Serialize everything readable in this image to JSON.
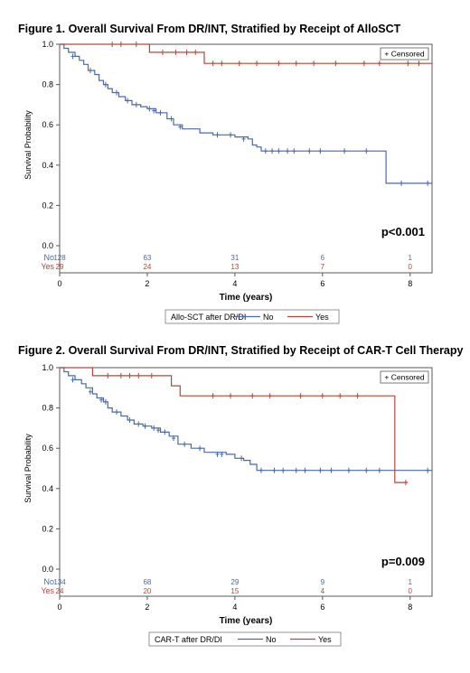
{
  "chart_data": [
    {
      "type": "line",
      "title": "Figure 1. Overall Survival From DR/INT, Stratified by Receipt of AlloSCT",
      "xlabel": "Time (years)",
      "ylabel": "Survival Probability",
      "xlim": [
        0,
        8.5
      ],
      "ylim": [
        0,
        1.0
      ],
      "x_ticks": [
        0,
        2,
        4,
        6,
        8
      ],
      "y_ticks": [
        0.0,
        0.2,
        0.4,
        0.6,
        0.8,
        1.0
      ],
      "inset_legend": "+ Censored",
      "p_value": "p<0.001",
      "legend_title": "Allo-SCT after DR/DI",
      "series": [
        {
          "name": "No",
          "color": "#4a6aa5",
          "steps": [
            [
              0,
              1.0
            ],
            [
              0.1,
              0.98
            ],
            [
              0.2,
              0.96
            ],
            [
              0.35,
              0.94
            ],
            [
              0.45,
              0.92
            ],
            [
              0.55,
              0.9
            ],
            [
              0.65,
              0.87
            ],
            [
              0.8,
              0.85
            ],
            [
              0.9,
              0.82
            ],
            [
              1.0,
              0.8
            ],
            [
              1.1,
              0.78
            ],
            [
              1.2,
              0.76
            ],
            [
              1.35,
              0.74
            ],
            [
              1.5,
              0.72
            ],
            [
              1.65,
              0.7
            ],
            [
              1.85,
              0.69
            ],
            [
              2.0,
              0.68
            ],
            [
              2.2,
              0.66
            ],
            [
              2.45,
              0.63
            ],
            [
              2.6,
              0.6
            ],
            [
              2.8,
              0.58
            ],
            [
              3.2,
              0.56
            ],
            [
              3.5,
              0.55
            ],
            [
              4.0,
              0.54
            ],
            [
              4.3,
              0.53
            ],
            [
              4.4,
              0.5
            ],
            [
              4.5,
              0.49
            ],
            [
              4.6,
              0.47
            ],
            [
              7.4,
              0.47
            ],
            [
              7.45,
              0.31
            ],
            [
              8.5,
              0.31
            ]
          ],
          "censored": [
            [
              0.3,
              0.94
            ],
            [
              0.7,
              0.87
            ],
            [
              1.05,
              0.8
            ],
            [
              1.3,
              0.76
            ],
            [
              1.55,
              0.72
            ],
            [
              1.75,
              0.7
            ],
            [
              2.05,
              0.68
            ],
            [
              2.15,
              0.67
            ],
            [
              2.3,
              0.66
            ],
            [
              2.55,
              0.63
            ],
            [
              2.75,
              0.59
            ],
            [
              3.6,
              0.55
            ],
            [
              3.9,
              0.55
            ],
            [
              4.2,
              0.53
            ],
            [
              4.7,
              0.47
            ],
            [
              4.85,
              0.47
            ],
            [
              5.0,
              0.47
            ],
            [
              5.2,
              0.47
            ],
            [
              5.35,
              0.47
            ],
            [
              5.7,
              0.47
            ],
            [
              5.95,
              0.47
            ],
            [
              6.5,
              0.47
            ],
            [
              7.0,
              0.47
            ],
            [
              7.8,
              0.31
            ],
            [
              8.4,
              0.31
            ]
          ]
        },
        {
          "name": "Yes",
          "color": "#b5473c",
          "steps": [
            [
              0,
              1.0
            ],
            [
              2.0,
              1.0
            ],
            [
              2.05,
              0.96
            ],
            [
              3.25,
              0.96
            ],
            [
              3.3,
              0.905
            ],
            [
              8.5,
              0.905
            ]
          ],
          "censored": [
            [
              1.2,
              1.0
            ],
            [
              1.4,
              1.0
            ],
            [
              1.75,
              1.0
            ],
            [
              2.35,
              0.96
            ],
            [
              2.65,
              0.96
            ],
            [
              2.9,
              0.96
            ],
            [
              3.1,
              0.96
            ],
            [
              3.5,
              0.905
            ],
            [
              3.7,
              0.905
            ],
            [
              4.1,
              0.905
            ],
            [
              4.5,
              0.905
            ],
            [
              5.0,
              0.905
            ],
            [
              5.4,
              0.905
            ],
            [
              5.8,
              0.905
            ],
            [
              6.3,
              0.905
            ],
            [
              6.95,
              0.905
            ],
            [
              7.3,
              0.905
            ],
            [
              7.95,
              0.905
            ],
            [
              8.2,
              0.905
            ]
          ]
        }
      ],
      "at_risk": {
        "times": [
          0,
          2,
          4,
          6,
          8
        ],
        "rows": [
          {
            "label": "No",
            "values": [
              "128",
              "63",
              "31",
              "6",
              "1"
            ]
          },
          {
            "label": "Yes",
            "values": [
              "29",
              "24",
              "13",
              "7",
              "0"
            ]
          }
        ]
      },
      "legend_items": [
        "No",
        "Yes"
      ]
    },
    {
      "type": "line",
      "title": "Figure 2. Overall Survival From DR/INT, Stratified by Receipt of CAR-T Cell Therapy",
      "xlabel": "Time (years)",
      "ylabel": "Survival Probability",
      "xlim": [
        0,
        8.5
      ],
      "ylim": [
        0,
        1.0
      ],
      "x_ticks": [
        0,
        2,
        4,
        6,
        8
      ],
      "y_ticks": [
        0.0,
        0.2,
        0.4,
        0.6,
        0.8,
        1.0
      ],
      "inset_legend": "+ Censored",
      "p_value": "p=0.009",
      "legend_title": "CAR-T after DR/DI",
      "series": [
        {
          "name": "No",
          "color": "#4a6aa5",
          "steps": [
            [
              0,
              1.0
            ],
            [
              0.1,
              0.98
            ],
            [
              0.2,
              0.96
            ],
            [
              0.35,
              0.94
            ],
            [
              0.5,
              0.92
            ],
            [
              0.6,
              0.9
            ],
            [
              0.75,
              0.87
            ],
            [
              0.85,
              0.85
            ],
            [
              1.0,
              0.83
            ],
            [
              1.1,
              0.8
            ],
            [
              1.2,
              0.78
            ],
            [
              1.4,
              0.76
            ],
            [
              1.55,
              0.74
            ],
            [
              1.7,
              0.72
            ],
            [
              1.9,
              0.71
            ],
            [
              2.1,
              0.7
            ],
            [
              2.3,
              0.68
            ],
            [
              2.5,
              0.66
            ],
            [
              2.7,
              0.62
            ],
            [
              3.0,
              0.6
            ],
            [
              3.3,
              0.58
            ],
            [
              3.8,
              0.57
            ],
            [
              4.0,
              0.55
            ],
            [
              4.2,
              0.54
            ],
            [
              4.35,
              0.52
            ],
            [
              4.5,
              0.49
            ],
            [
              7.5,
              0.49
            ],
            [
              8.5,
              0.49
            ]
          ],
          "censored": [
            [
              0.3,
              0.94
            ],
            [
              0.7,
              0.88
            ],
            [
              0.95,
              0.84
            ],
            [
              1.05,
              0.83
            ],
            [
              1.3,
              0.78
            ],
            [
              1.6,
              0.74
            ],
            [
              1.8,
              0.72
            ],
            [
              1.95,
              0.71
            ],
            [
              2.15,
              0.7
            ],
            [
              2.25,
              0.69
            ],
            [
              2.4,
              0.68
            ],
            [
              2.6,
              0.65
            ],
            [
              2.85,
              0.62
            ],
            [
              3.2,
              0.6
            ],
            [
              3.6,
              0.57
            ],
            [
              3.7,
              0.57
            ],
            [
              4.15,
              0.55
            ],
            [
              4.6,
              0.49
            ],
            [
              4.9,
              0.49
            ],
            [
              5.1,
              0.49
            ],
            [
              5.4,
              0.49
            ],
            [
              5.6,
              0.49
            ],
            [
              5.95,
              0.49
            ],
            [
              6.2,
              0.49
            ],
            [
              6.6,
              0.49
            ],
            [
              7.0,
              0.49
            ],
            [
              7.3,
              0.49
            ],
            [
              8.4,
              0.49
            ]
          ]
        },
        {
          "name": "Yes",
          "color": "#b5473c",
          "steps": [
            [
              0,
              1.0
            ],
            [
              0.7,
              1.0
            ],
            [
              0.75,
              0.96
            ],
            [
              2.5,
              0.96
            ],
            [
              2.55,
              0.91
            ],
            [
              2.7,
              0.91
            ],
            [
              2.75,
              0.86
            ],
            [
              7.6,
              0.86
            ],
            [
              7.65,
              0.43
            ],
            [
              7.95,
              0.43
            ]
          ],
          "censored": [
            [
              1.1,
              0.96
            ],
            [
              1.4,
              0.96
            ],
            [
              1.6,
              0.96
            ],
            [
              1.8,
              0.96
            ],
            [
              2.1,
              0.96
            ],
            [
              3.5,
              0.86
            ],
            [
              3.9,
              0.86
            ],
            [
              4.4,
              0.86
            ],
            [
              4.8,
              0.86
            ],
            [
              5.5,
              0.86
            ],
            [
              6.0,
              0.86
            ],
            [
              6.4,
              0.86
            ],
            [
              6.8,
              0.86
            ],
            [
              7.9,
              0.43
            ]
          ]
        }
      ],
      "at_risk": {
        "times": [
          0,
          2,
          4,
          6,
          8
        ],
        "rows": [
          {
            "label": "No",
            "values": [
              "134",
              "68",
              "29",
              "9",
              "1"
            ]
          },
          {
            "label": "Yes",
            "values": [
              "24",
              "20",
              "15",
              "4",
              "0"
            ]
          }
        ]
      },
      "legend_items": [
        "No",
        "Yes"
      ]
    }
  ]
}
